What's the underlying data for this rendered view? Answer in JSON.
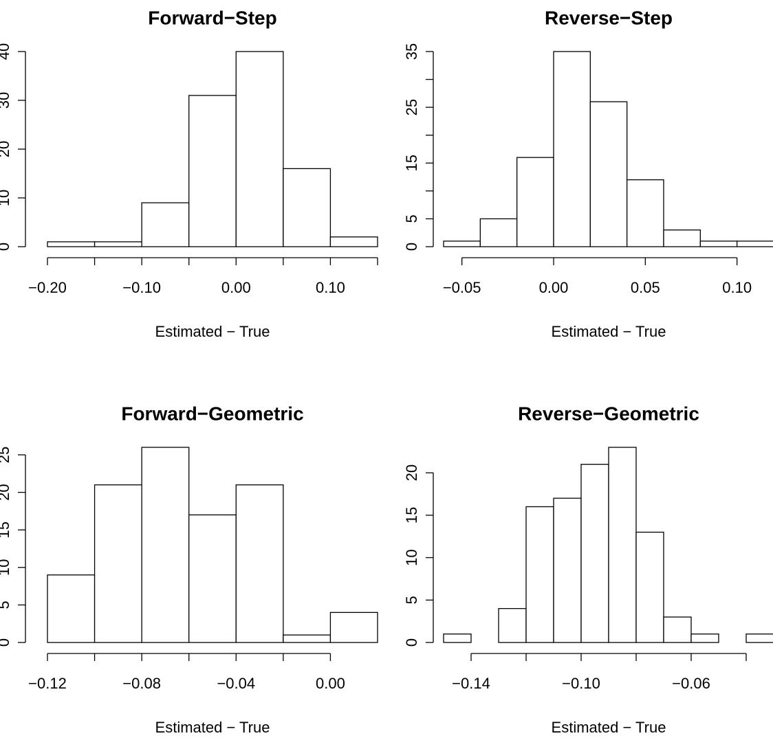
{
  "chart_data": [
    {
      "type": "histogram",
      "title": "Forward−Step",
      "xlabel": "Estimated − True",
      "color": "#ffffff",
      "bins": [
        -0.2,
        -0.15,
        -0.1,
        -0.05,
        0,
        0.05,
        0.1,
        0.15
      ],
      "values": [
        1,
        1,
        9,
        31,
        40,
        16,
        2
      ],
      "xlim": [
        -0.2,
        0.15
      ],
      "ylim": [
        0,
        40
      ],
      "xticks": [
        {
          "value": -0.2,
          "label": "−0.20"
        },
        -0.15,
        {
          "value": -0.1,
          "label": "−0.10"
        },
        -0.05,
        {
          "value": 0,
          "label": "0.00"
        },
        0.05,
        {
          "value": 0.1,
          "label": "0.10"
        },
        0.15
      ],
      "yticks": [
        0,
        10,
        20,
        30,
        40
      ]
    },
    {
      "type": "histogram",
      "title": "Reverse−Step",
      "xlabel": "Estimated − True",
      "color": "#ffffff",
      "bins": [
        -0.06,
        -0.04,
        -0.02,
        0,
        0.02,
        0.04,
        0.06,
        0.08,
        0.1,
        0.12
      ],
      "values": [
        1,
        5,
        16,
        35,
        26,
        12,
        3,
        1,
        1
      ],
      "xlim": [
        -0.06,
        0.12
      ],
      "ylim": [
        0,
        35
      ],
      "xticks": [
        {
          "value": -0.05,
          "label": "−0.05"
        },
        {
          "value": 0,
          "label": "0.00"
        },
        {
          "value": 0.05,
          "label": "0.05"
        },
        {
          "value": 0.1,
          "label": "0.10"
        }
      ],
      "yticks": [
        0,
        5,
        10,
        15,
        20,
        25,
        30,
        35
      ]
    },
    {
      "type": "histogram",
      "title": "Forward−Geometric",
      "xlabel": "Estimated − True",
      "color": "#ffffff",
      "bins": [
        -0.12,
        -0.1,
        -0.08,
        -0.06,
        -0.04,
        -0.02,
        0,
        0.02
      ],
      "values": [
        9,
        21,
        26,
        17,
        21,
        1,
        4
      ],
      "xlim": [
        -0.12,
        0.02
      ],
      "ylim": [
        0,
        26
      ],
      "xticks": [
        {
          "value": -0.12,
          "label": "−0.12"
        },
        -0.1,
        {
          "value": -0.08,
          "label": "−0.08"
        },
        -0.06,
        {
          "value": -0.04,
          "label": "−0.04"
        },
        -0.02,
        {
          "value": 0,
          "label": "0.00"
        }
      ],
      "yticks": [
        0,
        5,
        10,
        15,
        20,
        25
      ]
    },
    {
      "type": "histogram",
      "title": "Reverse−Geometric",
      "xlabel": "Estimated − True",
      "color": "#ffffff",
      "bins": [
        -0.15,
        -0.14,
        -0.13,
        -0.12,
        -0.11,
        -0.1,
        -0.09,
        -0.08,
        -0.07,
        -0.06,
        -0.05,
        -0.04,
        -0.03
      ],
      "values": [
        1,
        0,
        4,
        16,
        17,
        21,
        23,
        13,
        3,
        1,
        0,
        1
      ],
      "xlim": [
        -0.15,
        -0.03
      ],
      "ylim": [
        0,
        23
      ],
      "xticks": [
        {
          "value": -0.14,
          "label": "−0.14"
        },
        -0.12,
        {
          "value": -0.1,
          "label": "−0.10"
        },
        -0.08,
        {
          "value": -0.06,
          "label": "−0.06"
        },
        -0.04
      ],
      "yticks": [
        0,
        5,
        10,
        15,
        20
      ]
    }
  ]
}
